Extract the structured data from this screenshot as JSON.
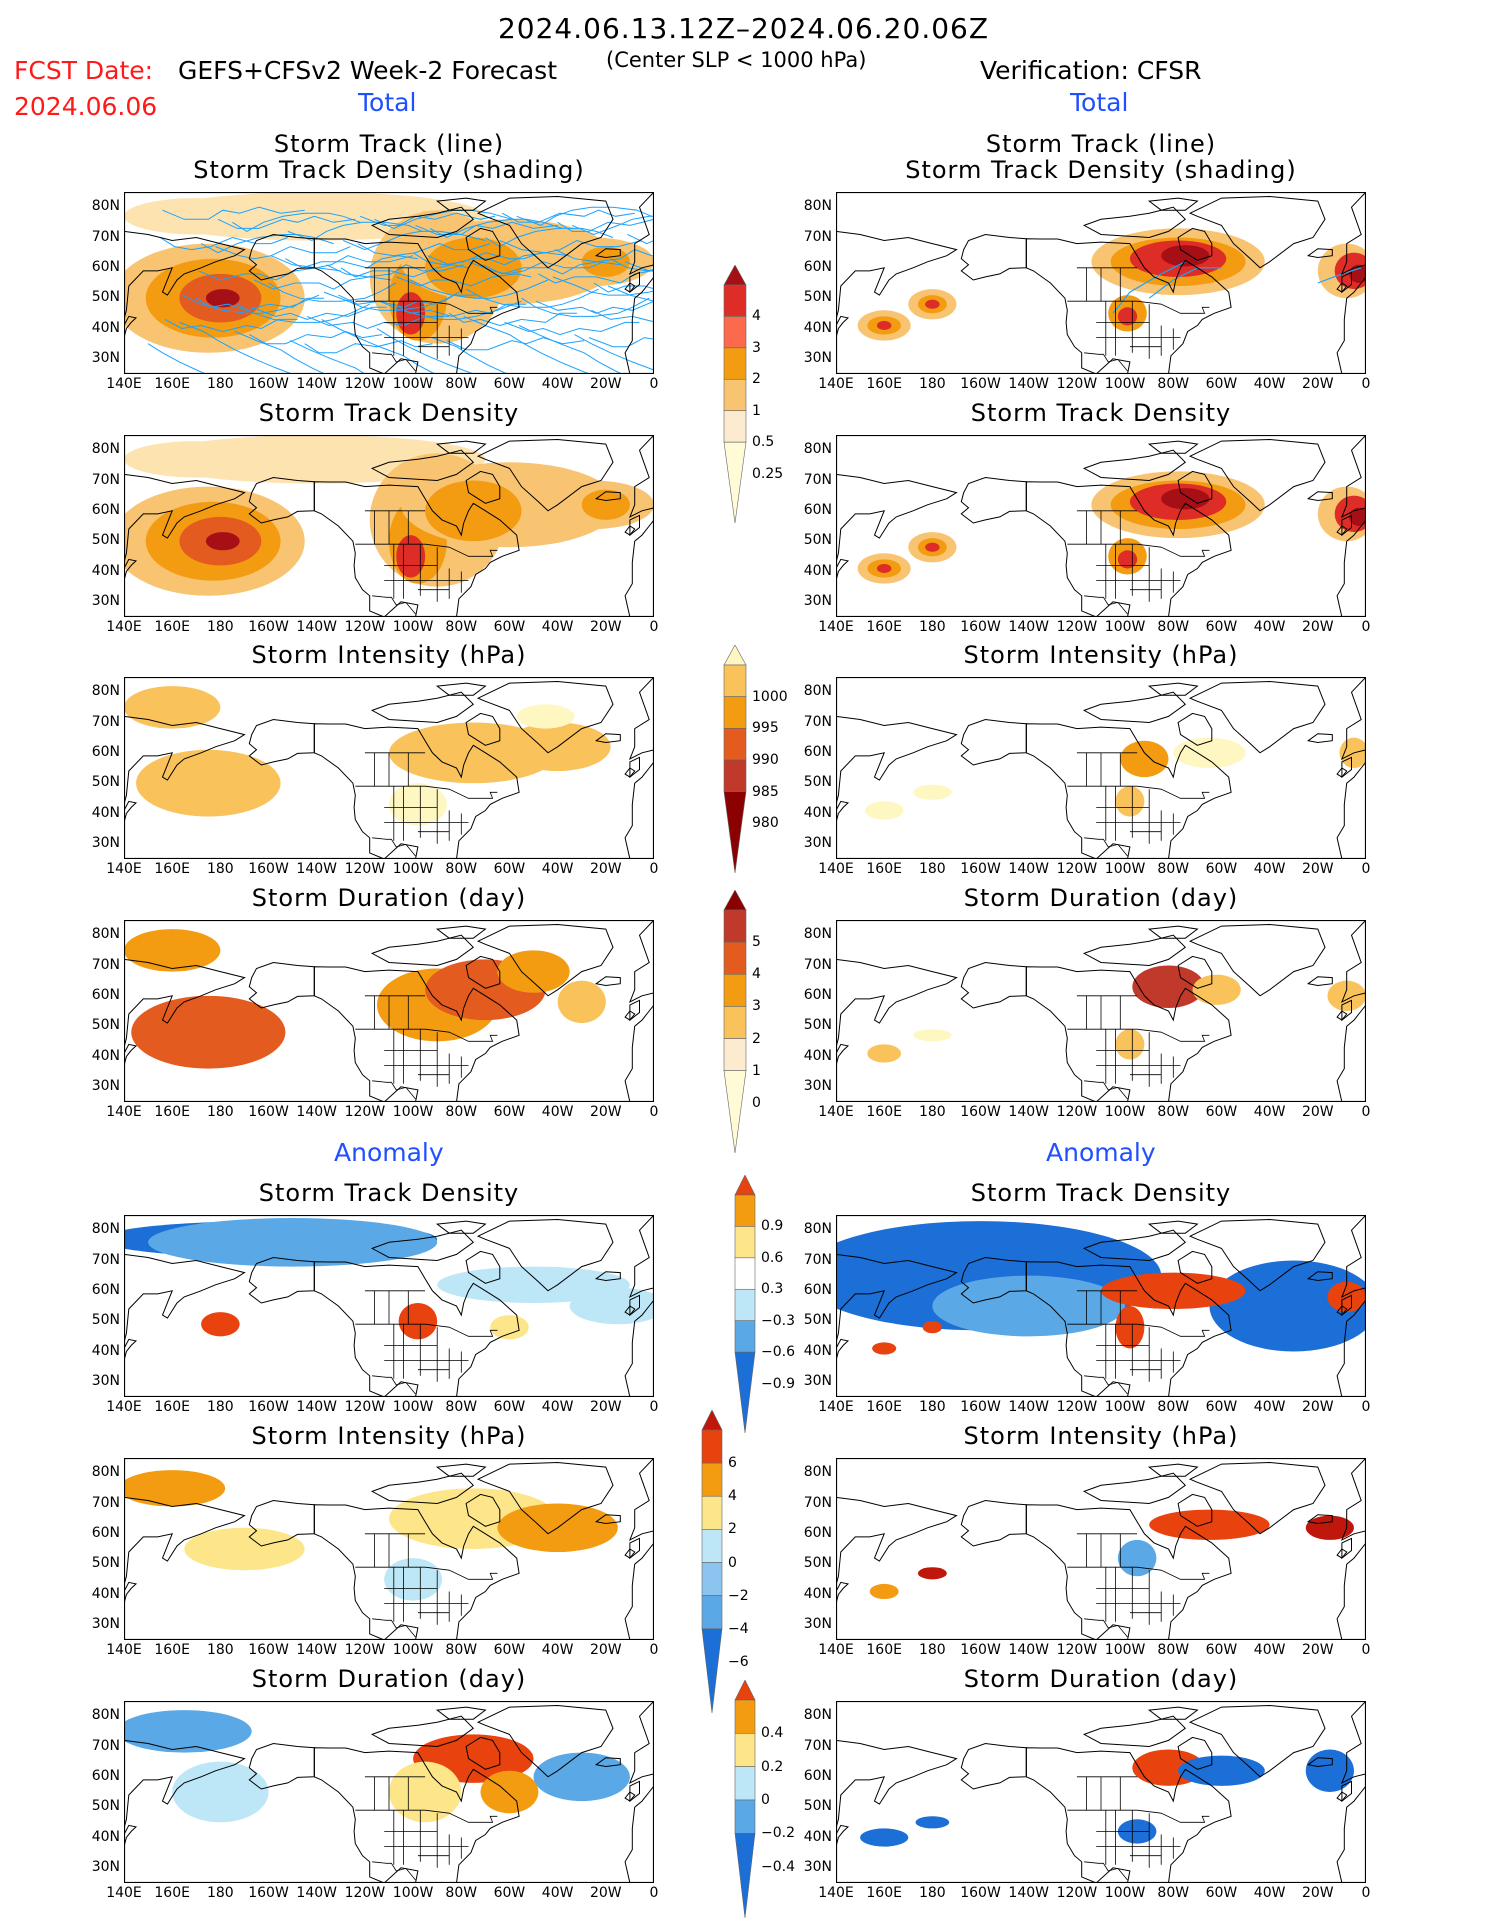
{
  "header": {
    "period": "2024.06.13.12Z–2024.06.20.06Z",
    "fcst_label": "FCST Date:",
    "fcst_date": "2024.06.06",
    "forecast_title": "GEFS+CFSv2 Week-2 Forecast",
    "condition": "(Center SLP < 1000 hPa)",
    "verification": "Verification: CFSR"
  },
  "sections": {
    "total_left": "Total",
    "total_right": "Total",
    "anomaly_left": "Anomaly",
    "anomaly_right": "Anomaly"
  },
  "panel_titles": {
    "track_line": "Storm Track (line)",
    "track_shading": "Storm Track Density (shading)",
    "density": "Storm Track Density",
    "intensity": "Storm Intensity (hPa)",
    "duration": "Storm Duration (day)"
  },
  "axes": {
    "lat_labels": [
      "80N",
      "70N",
      "60N",
      "50N",
      "40N",
      "30N"
    ],
    "lon_labels": [
      "140E",
      "160E",
      "180",
      "160W",
      "140W",
      "120W",
      "100W",
      "80W",
      "60W",
      "40W",
      "20W",
      "0"
    ]
  },
  "colorbars": {
    "density_total": {
      "labels": [
        "4",
        "3",
        "2",
        "1",
        "0.5",
        "0.25"
      ],
      "colors": [
        "#a50f15",
        "#de2d26",
        "#fb6a4a",
        "#f39c12",
        "#f8c471",
        "#fdebd0",
        "#fffbd6"
      ]
    },
    "intensity_total": {
      "labels": [
        "1000",
        "995",
        "990",
        "985",
        "980"
      ],
      "colors": [
        "#fff7c2",
        "#f9c25a",
        "#f39c12",
        "#e35b1f",
        "#c0392b",
        "#8b0000"
      ]
    },
    "duration_total": {
      "labels": [
        "5",
        "4",
        "3",
        "2",
        "1",
        "0"
      ],
      "colors": [
        "#8b0000",
        "#c0392b",
        "#e35b1f",
        "#f39c12",
        "#f9c25a",
        "#fdebd0",
        "#fffbd6"
      ]
    },
    "density_anom": {
      "labels": [
        "0.9",
        "0.6",
        "0.3",
        "−0.3",
        "−0.6",
        "−0.9"
      ],
      "colors": [
        "#e8420e",
        "#f39c12",
        "#fde68a",
        "#ffffff",
        "#bde6f7",
        "#5aa9e6",
        "#1c6fd6"
      ]
    },
    "intensity_anom": {
      "labels": [
        "6",
        "4",
        "2",
        "0",
        "−2",
        "−4",
        "−6"
      ],
      "colors": [
        "#c0170c",
        "#e8420e",
        "#f39c12",
        "#fde68a",
        "#bde6f7",
        "#8cc4f0",
        "#5aa9e6",
        "#1c6fd6"
      ]
    },
    "duration_anom": {
      "labels": [
        "0.4",
        "0.2",
        "0",
        "−0.2",
        "−0.4"
      ],
      "colors": [
        "#e8420e",
        "#f39c12",
        "#fde68a",
        "#bde6f7",
        "#5aa9e6",
        "#1c6fd6"
      ]
    }
  }
}
